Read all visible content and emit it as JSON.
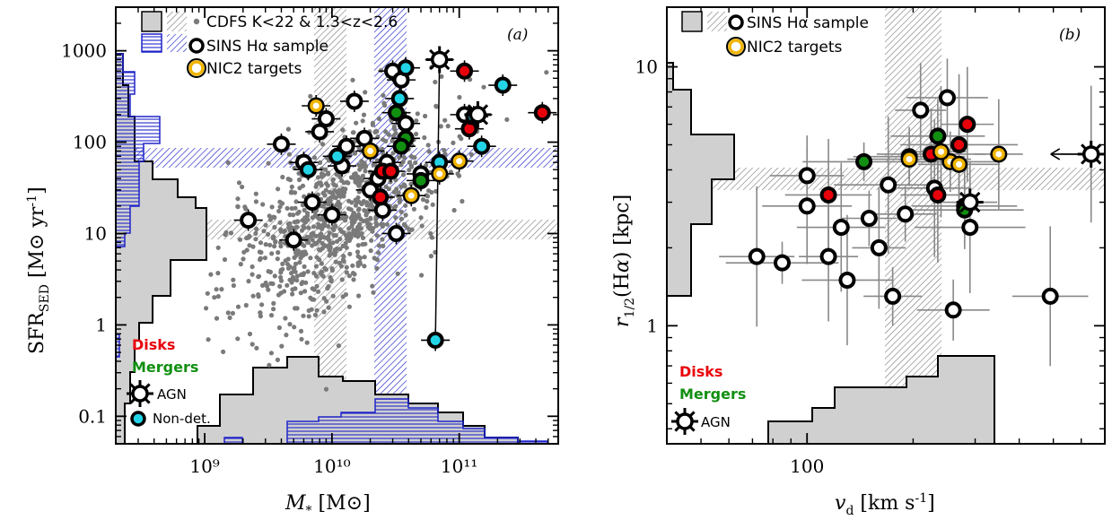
{
  "panel_a": {
    "label": "(a)",
    "legend": {
      "cdfs": "CDFS K<22 & 1.3<z<2.6",
      "sins": "SINS Hα sample",
      "nic2": "NIC2 targets"
    },
    "key": {
      "disks": "Disks",
      "mergers": "Mergers",
      "agn": "AGN",
      "nondet": "Non-det."
    },
    "xlabel": "M* [M⊙]",
    "ylabel": "SFR_SED [M⊙ yr⁻¹]",
    "xticks": [
      "10⁹",
      "10¹⁰",
      "10¹¹"
    ],
    "yticks": [
      "0.1",
      "1",
      "10",
      "100",
      "1000"
    ]
  },
  "panel_b": {
    "label": "(b)",
    "legend": {
      "sins": "SINS Hα sample",
      "nic2": "NIC2 targets"
    },
    "key": {
      "disks": "Disks",
      "mergers": "Mergers",
      "agn": "AGN"
    },
    "xlabel": "v_d [km s⁻¹]",
    "ylabel": "r1/2(Hα) [kpc]",
    "xticks": [
      "100"
    ],
    "yticks": [
      "1",
      "10"
    ]
  },
  "colors": {
    "disk": "#e8000b",
    "merger": "#118f11",
    "nondet": "#22d4e6",
    "nic2": "#f0b400",
    "cdfs": "#7a7a7a",
    "blue_hatch": "#1f24c8",
    "gray_fill": "#d0d0d0"
  },
  "chart_data": [
    {
      "type": "scatter",
      "panel": "a",
      "xlabel": "M* [M⊙]",
      "ylabel": "SFR_SED [M⊙ yr⁻¹]",
      "xscale": "log",
      "yscale": "log",
      "xlim": [
        200000000.0,
        600000000000.0
      ],
      "ylim": [
        0.05,
        3000
      ],
      "series": [
        {
          "name": "SINS Hα sample",
          "points": [
            {
              "x": 2200000000.0,
              "y": 14,
              "kind": "sins"
            },
            {
              "x": 5000000000.0,
              "y": 8.5,
              "kind": "sins"
            },
            {
              "x": 6000000000.0,
              "y": 60,
              "kind": "sins"
            },
            {
              "x": 7000000000.0,
              "y": 22,
              "kind": "sins"
            },
            {
              "x": 9000000000.0,
              "y": 180,
              "kind": "sins"
            },
            {
              "x": 10000000000.0,
              "y": 16,
              "kind": "sins"
            },
            {
              "x": 4000000000.0,
              "y": 95,
              "kind": "sins"
            },
            {
              "x": 12000000000.0,
              "y": 55,
              "kind": "sins"
            },
            {
              "x": 15000000000.0,
              "y": 280,
              "kind": "sins"
            },
            {
              "x": 18000000000.0,
              "y": 110,
              "kind": "sins"
            },
            {
              "x": 20000000000.0,
              "y": 30,
              "kind": "sins"
            },
            {
              "x": 23000000000.0,
              "y": 40,
              "kind": "sins"
            },
            {
              "x": 25000000000.0,
              "y": 18,
              "kind": "sins"
            },
            {
              "x": 27000000000.0,
              "y": 60,
              "kind": "sins"
            },
            {
              "x": 30000000000.0,
              "y": 600,
              "kind": "sins"
            },
            {
              "x": 35000000000.0,
              "y": 480,
              "kind": "sins"
            },
            {
              "x": 38000000000.0,
              "y": 160,
              "kind": "sins"
            },
            {
              "x": 32000000000.0,
              "y": 10,
              "kind": "sins"
            },
            {
              "x": 50000000000.0,
              "y": 45,
              "kind": "sins"
            },
            {
              "x": 110000000000.0,
              "y": 200,
              "kind": "sins"
            },
            {
              "x": 8000000000.0,
              "y": 130,
              "kind": "sins"
            },
            {
              "x": 13000000000.0,
              "y": 90,
              "kind": "sins"
            }
          ]
        },
        {
          "name": "Disks",
          "points": [
            {
              "x": 25000000000.0,
              "y": 48,
              "kind": "disk"
            },
            {
              "x": 29000000000.0,
              "y": 48,
              "kind": "disk"
            },
            {
              "x": 110000000000.0,
              "y": 600,
              "kind": "disk"
            },
            {
              "x": 120000000000.0,
              "y": 140,
              "kind": "disk"
            },
            {
              "x": 450000000000.0,
              "y": 210,
              "kind": "disk"
            },
            {
              "x": 24000000000.0,
              "y": 25,
              "kind": "disk"
            }
          ]
        },
        {
          "name": "Mergers",
          "points": [
            {
              "x": 32000000000.0,
              "y": 210,
              "kind": "merger"
            },
            {
              "x": 38000000000.0,
              "y": 110,
              "kind": "merger"
            },
            {
              "x": 35000000000.0,
              "y": 90,
              "kind": "merger"
            },
            {
              "x": 50000000000.0,
              "y": 38,
              "kind": "merger"
            }
          ]
        },
        {
          "name": "Non-det.",
          "points": [
            {
              "x": 65000000000.0,
              "y": 0.68,
              "kind": "nondet"
            },
            {
              "x": 38000000000.0,
              "y": 650,
              "kind": "nondet"
            },
            {
              "x": 34000000000.0,
              "y": 300,
              "kind": "nondet"
            },
            {
              "x": 220000000000.0,
              "y": 420,
              "kind": "nondet"
            },
            {
              "x": 130000000000.0,
              "y": 190,
              "kind": "nondet"
            },
            {
              "x": 11000000000.0,
              "y": 70,
              "kind": "nondet"
            },
            {
              "x": 6500000000.0,
              "y": 50,
              "kind": "nondet"
            },
            {
              "x": 70000000000.0,
              "y": 60,
              "kind": "nondet"
            },
            {
              "x": 150000000000.0,
              "y": 90,
              "kind": "nondet"
            }
          ]
        },
        {
          "name": "NIC2 targets",
          "points": [
            {
              "x": 7500000000.0,
              "y": 250,
              "kind": "nic2"
            },
            {
              "x": 20000000000.0,
              "y": 80,
              "kind": "nic2"
            },
            {
              "x": 42000000000.0,
              "y": 26,
              "kind": "nic2"
            },
            {
              "x": 100000000000.0,
              "y": 62,
              "kind": "nic2"
            },
            {
              "x": 70000000000.0,
              "y": 45,
              "kind": "nic2"
            }
          ]
        },
        {
          "name": "AGN",
          "points": [
            {
              "x": 70000000000.0,
              "y": 800,
              "kind": "agn"
            },
            {
              "x": 140000000000.0,
              "y": 200,
              "kind": "agn"
            }
          ]
        }
      ]
    },
    {
      "type": "scatter",
      "panel": "b",
      "xlabel": "v_d [km s⁻¹]",
      "ylabel": "r1/2(Hα) [kpc]",
      "xscale": "log",
      "yscale": "log",
      "xlim": [
        40,
        700
      ],
      "ylim": [
        0.35,
        17
      ],
      "series": [
        {
          "name": "SINS Hα sample",
          "points": [
            {
              "x": 72,
              "y": 1.85,
              "kind": "sins"
            },
            {
              "x": 85,
              "y": 1.75,
              "kind": "sins"
            },
            {
              "x": 100,
              "y": 3.8,
              "kind": "sins"
            },
            {
              "x": 100,
              "y": 2.9,
              "kind": "sins"
            },
            {
              "x": 115,
              "y": 1.85,
              "kind": "sins"
            },
            {
              "x": 125,
              "y": 2.4,
              "kind": "sins"
            },
            {
              "x": 130,
              "y": 1.5,
              "kind": "sins"
            },
            {
              "x": 150,
              "y": 2.6,
              "kind": "sins"
            },
            {
              "x": 160,
              "y": 2.0,
              "kind": "sins"
            },
            {
              "x": 175,
              "y": 1.3,
              "kind": "sins"
            },
            {
              "x": 190,
              "y": 2.7,
              "kind": "sins"
            },
            {
              "x": 210,
              "y": 6.8,
              "kind": "sins"
            },
            {
              "x": 230,
              "y": 3.4,
              "kind": "sins"
            },
            {
              "x": 250,
              "y": 7.6,
              "kind": "sins"
            },
            {
              "x": 260,
              "y": 1.15,
              "kind": "sins"
            },
            {
              "x": 280,
              "y": 2.9,
              "kind": "sins"
            },
            {
              "x": 290,
              "y": 2.4,
              "kind": "sins"
            },
            {
              "x": 490,
              "y": 1.3,
              "kind": "sins"
            },
            {
              "x": 195,
              "y": 4.5,
              "kind": "sins"
            },
            {
              "x": 170,
              "y": 3.5,
              "kind": "sins"
            }
          ]
        },
        {
          "name": "Disks",
          "points": [
            {
              "x": 115,
              "y": 3.2,
              "kind": "disk"
            },
            {
              "x": 225,
              "y": 4.6,
              "kind": "disk"
            },
            {
              "x": 235,
              "y": 3.2,
              "kind": "disk"
            },
            {
              "x": 270,
              "y": 5.0,
              "kind": "disk"
            },
            {
              "x": 285,
              "y": 6.0,
              "kind": "disk"
            }
          ]
        },
        {
          "name": "Mergers",
          "points": [
            {
              "x": 145,
              "y": 4.3,
              "kind": "merger"
            },
            {
              "x": 235,
              "y": 5.4,
              "kind": "merger"
            },
            {
              "x": 280,
              "y": 2.8,
              "kind": "merger"
            }
          ]
        },
        {
          "name": "NIC2 targets",
          "points": [
            {
              "x": 195,
              "y": 4.4,
              "kind": "nic2"
            },
            {
              "x": 255,
              "y": 4.3,
              "kind": "nic2"
            },
            {
              "x": 270,
              "y": 4.2,
              "kind": "nic2"
            },
            {
              "x": 350,
              "y": 4.6,
              "kind": "nic2"
            },
            {
              "x": 240,
              "y": 4.7,
              "kind": "nic2"
            }
          ]
        },
        {
          "name": "AGN",
          "points": [
            {
              "x": 640,
              "y": 4.6,
              "kind": "agn"
            },
            {
              "x": 290,
              "y": 3.0,
              "kind": "agn"
            }
          ]
        }
      ]
    }
  ]
}
